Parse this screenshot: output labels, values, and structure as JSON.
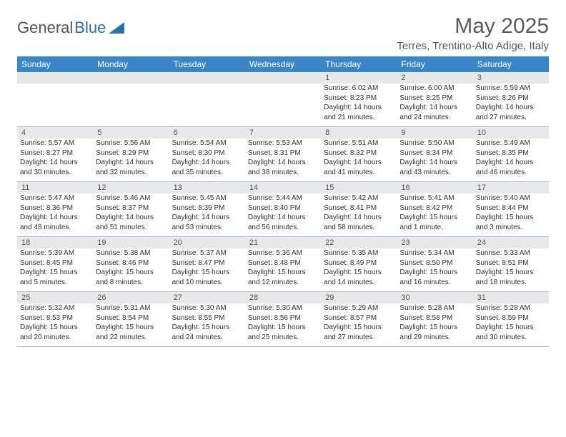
{
  "logo": {
    "text1": "General",
    "text2": "Blue"
  },
  "title": "May 2025",
  "location": "Terres, Trentino-Alto Adige, Italy",
  "colors": {
    "header_bg": "#3b86c6",
    "header_text": "#ffffff",
    "daynum_bg": "#e7e8ea",
    "grid_border": "#a7b9d0",
    "text": "#333333",
    "title_text": "#5a5a5a",
    "logo_gray": "#555555",
    "logo_blue": "#2f6fa8"
  },
  "day_names": [
    "Sunday",
    "Monday",
    "Tuesday",
    "Wednesday",
    "Thursday",
    "Friday",
    "Saturday"
  ],
  "weeks": [
    {
      "nums": [
        "",
        "",
        "",
        "",
        "1",
        "2",
        "3"
      ],
      "cells": [
        null,
        null,
        null,
        null,
        {
          "sunrise": "Sunrise: 6:02 AM",
          "sunset": "Sunset: 8:23 PM",
          "day1": "Daylight: 14 hours",
          "day2": "and 21 minutes."
        },
        {
          "sunrise": "Sunrise: 6:00 AM",
          "sunset": "Sunset: 8:25 PM",
          "day1": "Daylight: 14 hours",
          "day2": "and 24 minutes."
        },
        {
          "sunrise": "Sunrise: 5:59 AM",
          "sunset": "Sunset: 8:26 PM",
          "day1": "Daylight: 14 hours",
          "day2": "and 27 minutes."
        }
      ]
    },
    {
      "nums": [
        "4",
        "5",
        "6",
        "7",
        "8",
        "9",
        "10"
      ],
      "cells": [
        {
          "sunrise": "Sunrise: 5:57 AM",
          "sunset": "Sunset: 8:27 PM",
          "day1": "Daylight: 14 hours",
          "day2": "and 30 minutes."
        },
        {
          "sunrise": "Sunrise: 5:56 AM",
          "sunset": "Sunset: 8:29 PM",
          "day1": "Daylight: 14 hours",
          "day2": "and 32 minutes."
        },
        {
          "sunrise": "Sunrise: 5:54 AM",
          "sunset": "Sunset: 8:30 PM",
          "day1": "Daylight: 14 hours",
          "day2": "and 35 minutes."
        },
        {
          "sunrise": "Sunrise: 5:53 AM",
          "sunset": "Sunset: 8:31 PM",
          "day1": "Daylight: 14 hours",
          "day2": "and 38 minutes."
        },
        {
          "sunrise": "Sunrise: 5:51 AM",
          "sunset": "Sunset: 8:32 PM",
          "day1": "Daylight: 14 hours",
          "day2": "and 41 minutes."
        },
        {
          "sunrise": "Sunrise: 5:50 AM",
          "sunset": "Sunset: 8:34 PM",
          "day1": "Daylight: 14 hours",
          "day2": "and 43 minutes."
        },
        {
          "sunrise": "Sunrise: 5:49 AM",
          "sunset": "Sunset: 8:35 PM",
          "day1": "Daylight: 14 hours",
          "day2": "and 46 minutes."
        }
      ]
    },
    {
      "nums": [
        "11",
        "12",
        "13",
        "14",
        "15",
        "16",
        "17"
      ],
      "cells": [
        {
          "sunrise": "Sunrise: 5:47 AM",
          "sunset": "Sunset: 8:36 PM",
          "day1": "Daylight: 14 hours",
          "day2": "and 48 minutes."
        },
        {
          "sunrise": "Sunrise: 5:46 AM",
          "sunset": "Sunset: 8:37 PM",
          "day1": "Daylight: 14 hours",
          "day2": "and 51 minutes."
        },
        {
          "sunrise": "Sunrise: 5:45 AM",
          "sunset": "Sunset: 8:39 PM",
          "day1": "Daylight: 14 hours",
          "day2": "and 53 minutes."
        },
        {
          "sunrise": "Sunrise: 5:44 AM",
          "sunset": "Sunset: 8:40 PM",
          "day1": "Daylight: 14 hours",
          "day2": "and 56 minutes."
        },
        {
          "sunrise": "Sunrise: 5:42 AM",
          "sunset": "Sunset: 8:41 PM",
          "day1": "Daylight: 14 hours",
          "day2": "and 58 minutes."
        },
        {
          "sunrise": "Sunrise: 5:41 AM",
          "sunset": "Sunset: 8:42 PM",
          "day1": "Daylight: 15 hours",
          "day2": "and 1 minute."
        },
        {
          "sunrise": "Sunrise: 5:40 AM",
          "sunset": "Sunset: 8:44 PM",
          "day1": "Daylight: 15 hours",
          "day2": "and 3 minutes."
        }
      ]
    },
    {
      "nums": [
        "18",
        "19",
        "20",
        "21",
        "22",
        "23",
        "24"
      ],
      "cells": [
        {
          "sunrise": "Sunrise: 5:39 AM",
          "sunset": "Sunset: 8:45 PM",
          "day1": "Daylight: 15 hours",
          "day2": "and 5 minutes."
        },
        {
          "sunrise": "Sunrise: 5:38 AM",
          "sunset": "Sunset: 8:46 PM",
          "day1": "Daylight: 15 hours",
          "day2": "and 8 minutes."
        },
        {
          "sunrise": "Sunrise: 5:37 AM",
          "sunset": "Sunset: 8:47 PM",
          "day1": "Daylight: 15 hours",
          "day2": "and 10 minutes."
        },
        {
          "sunrise": "Sunrise: 5:36 AM",
          "sunset": "Sunset: 8:48 PM",
          "day1": "Daylight: 15 hours",
          "day2": "and 12 minutes."
        },
        {
          "sunrise": "Sunrise: 5:35 AM",
          "sunset": "Sunset: 8:49 PM",
          "day1": "Daylight: 15 hours",
          "day2": "and 14 minutes."
        },
        {
          "sunrise": "Sunrise: 5:34 AM",
          "sunset": "Sunset: 8:50 PM",
          "day1": "Daylight: 15 hours",
          "day2": "and 16 minutes."
        },
        {
          "sunrise": "Sunrise: 5:33 AM",
          "sunset": "Sunset: 8:51 PM",
          "day1": "Daylight: 15 hours",
          "day2": "and 18 minutes."
        }
      ]
    },
    {
      "nums": [
        "25",
        "26",
        "27",
        "28",
        "29",
        "30",
        "31"
      ],
      "cells": [
        {
          "sunrise": "Sunrise: 5:32 AM",
          "sunset": "Sunset: 8:53 PM",
          "day1": "Daylight: 15 hours",
          "day2": "and 20 minutes."
        },
        {
          "sunrise": "Sunrise: 5:31 AM",
          "sunset": "Sunset: 8:54 PM",
          "day1": "Daylight: 15 hours",
          "day2": "and 22 minutes."
        },
        {
          "sunrise": "Sunrise: 5:30 AM",
          "sunset": "Sunset: 8:55 PM",
          "day1": "Daylight: 15 hours",
          "day2": "and 24 minutes."
        },
        {
          "sunrise": "Sunrise: 5:30 AM",
          "sunset": "Sunset: 8:56 PM",
          "day1": "Daylight: 15 hours",
          "day2": "and 25 minutes."
        },
        {
          "sunrise": "Sunrise: 5:29 AM",
          "sunset": "Sunset: 8:57 PM",
          "day1": "Daylight: 15 hours",
          "day2": "and 27 minutes."
        },
        {
          "sunrise": "Sunrise: 5:28 AM",
          "sunset": "Sunset: 8:58 PM",
          "day1": "Daylight: 15 hours",
          "day2": "and 29 minutes."
        },
        {
          "sunrise": "Sunrise: 5:28 AM",
          "sunset": "Sunset: 8:59 PM",
          "day1": "Daylight: 15 hours",
          "day2": "and 30 minutes."
        }
      ]
    }
  ]
}
